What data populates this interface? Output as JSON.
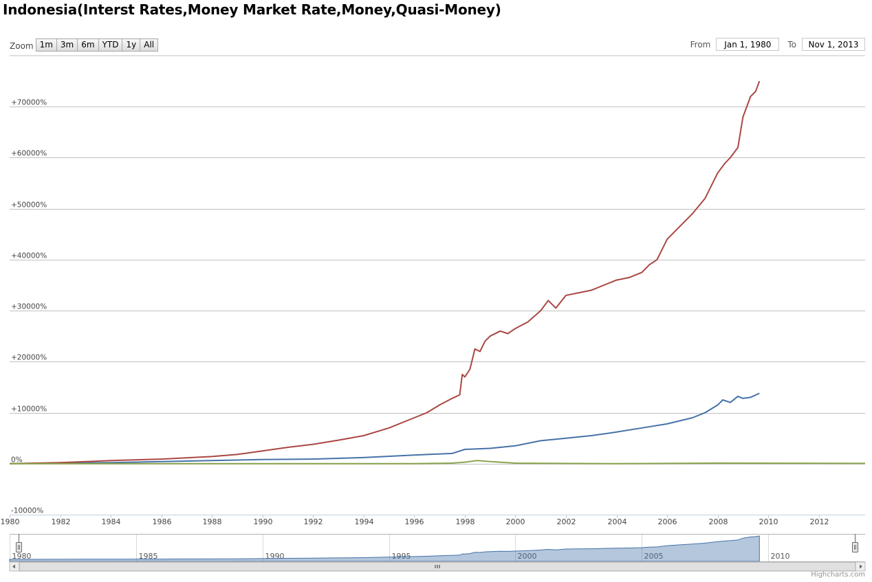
{
  "title": "Indonesia(Interst Rates,Money Market Rate,Money,Quasi-Money)",
  "zoom": {
    "label": "Zoom",
    "buttons": [
      "1m",
      "3m",
      "6m",
      "YTD",
      "1y",
      "All"
    ]
  },
  "range": {
    "from_label": "From",
    "from_value": "Jan 1, 1980",
    "to_label": "To",
    "to_value": "Nov 1, 2013"
  },
  "credits": "Highcharts.com",
  "chart_data": {
    "type": "line",
    "xlim": [
      1980,
      2013.83
    ],
    "ylim": [
      -10000,
      80000
    ],
    "y_ticks": [
      -10000,
      0,
      10000,
      20000,
      30000,
      40000,
      50000,
      60000,
      70000
    ],
    "y_tick_labels": [
      "-10000%",
      "0%",
      "+10000%",
      "+20000%",
      "+30000%",
      "+40000%",
      "+50000%",
      "+60000%",
      "+70000%"
    ],
    "x_ticks": [
      1980,
      1982,
      1984,
      1986,
      1988,
      1990,
      1992,
      1994,
      1996,
      1998,
      2000,
      2002,
      2004,
      2006,
      2008,
      2010,
      2012
    ],
    "grid": true,
    "series": [
      {
        "color": "#aa4643",
        "x": [
          1980,
          1982,
          1984,
          1986,
          1988,
          1989,
          1990,
          1991,
          1992,
          1993,
          1994,
          1995,
          1996,
          1996.5,
          1997,
          1997.5,
          1997.8,
          1997.9,
          1998.0,
          1998.2,
          1998.4,
          1998.6,
          1998.8,
          1999.0,
          1999.4,
          1999.7,
          2000.0,
          2000.5,
          2001.0,
          2001.3,
          2001.6,
          2002.0,
          2002.5,
          2003.0,
          2003.5,
          2004.0,
          2004.5,
          2005.0,
          2005.3,
          2005.6,
          2006.0,
          2006.5,
          2007.0,
          2007.5,
          2008.0,
          2008.3,
          2008.5,
          2008.8,
          2009.0,
          2009.3,
          2009.5,
          2009.65
        ],
        "y": [
          0,
          200,
          600,
          900,
          1400,
          1800,
          2500,
          3200,
          3800,
          4600,
          5500,
          7000,
          9000,
          10000,
          11500,
          12800,
          13500,
          17500,
          17000,
          18500,
          22500,
          22000,
          24000,
          25000,
          26000,
          25500,
          26500,
          27800,
          30000,
          32000,
          30500,
          33000,
          33500,
          34000,
          35000,
          36000,
          36500,
          37500,
          39000,
          40000,
          44000,
          46500,
          49000,
          52000,
          57000,
          59000,
          60000,
          62000,
          68000,
          72000,
          73000,
          75000
        ]
      },
      {
        "color": "#4572a7",
        "x": [
          1980,
          1982,
          1984,
          1986,
          1988,
          1990,
          1992,
          1994,
          1996,
          1997.5,
          1998,
          1999,
          2000,
          2001,
          2002,
          2003,
          2004,
          2005,
          2006,
          2007,
          2007.5,
          2008,
          2008.2,
          2008.5,
          2008.8,
          2009,
          2009.3,
          2009.65
        ],
        "y": [
          0,
          100,
          200,
          400,
          600,
          800,
          900,
          1200,
          1700,
          2000,
          2800,
          3000,
          3500,
          4500,
          5000,
          5500,
          6200,
          7000,
          7800,
          9000,
          10000,
          11500,
          12500,
          12000,
          13200,
          12800,
          13000,
          13800
        ]
      },
      {
        "color": "#89a54e",
        "x": [
          1980,
          1984,
          1988,
          1992,
          1996,
          1997.5,
          1998,
          1998.5,
          1999,
          2000,
          2004,
          2008,
          2013.83
        ],
        "y": [
          0,
          0,
          0,
          0,
          0,
          100,
          300,
          600,
          400,
          100,
          0,
          100,
          50
        ]
      }
    ],
    "navigator": {
      "x_tick_labels": [
        "1980",
        "1985",
        "1990",
        "1995",
        "2000",
        "2005",
        "2010"
      ],
      "x_ticks": [
        1980,
        1985,
        1990,
        1995,
        2000,
        2005,
        2010
      ]
    }
  }
}
